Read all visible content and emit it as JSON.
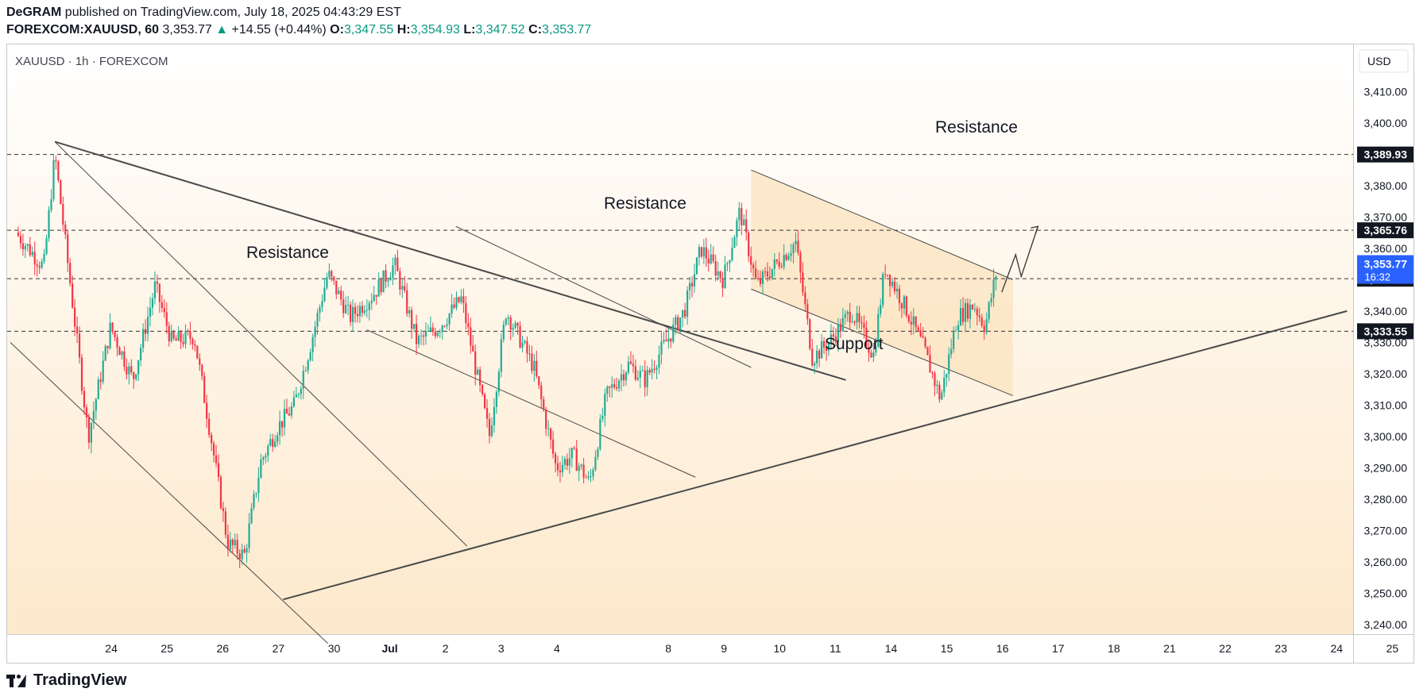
{
  "header": {
    "author": "DeGRAM",
    "published_text": "published on TradingView.com, July 18, 2025 04:43:29 EST",
    "symbol_line": "FOREXCOM:XAUUSD, 60",
    "last": "3,353.77",
    "change_arrow": "▲",
    "change": "+14.55 (+0.44%)",
    "o_label": "O:",
    "o": "3,347.55",
    "h_label": "H:",
    "h": "3,354.93",
    "l_label": "L:",
    "l": "3,347.52",
    "c_label": "C:",
    "c": "3,353.77"
  },
  "legend": "XAUUSD · 1h · FOREXCOM",
  "currency": "USD",
  "footer": {
    "brand": "TradingView"
  },
  "colors": {
    "up": "#22ab94",
    "down": "#f23645",
    "line": "#4a4a4a",
    "bg_top": "#ffffff",
    "bg_bottom": "#fde9cc",
    "channel_fill": "#fbe3bf",
    "label_bg": "#131722",
    "current_bg": "#2962ff"
  },
  "chart_data": {
    "type": "candlestick",
    "ylim": [
      3235,
      3415
    ],
    "y_ticks": [
      3240,
      3250,
      3260,
      3270,
      3280,
      3290,
      3300,
      3310,
      3320,
      3330,
      3340,
      3350,
      3360,
      3370,
      3380,
      3390,
      3400,
      3410
    ],
    "y_tick_labels": [
      "3,240.00",
      "3,250.00",
      "3,260.00",
      "3,270.00",
      "3,280.00",
      "3,290.00",
      "3,300.00",
      "3,310.00",
      "3,320.00",
      "3,330.00",
      "3,340.00",
      "3,350.00",
      "3,360.00",
      "3,370.00",
      "3,380.00",
      "3,390.00",
      "3,400.00",
      "3,410.00"
    ],
    "x_tick_labels": [
      "24",
      "25",
      "26",
      "27",
      "30",
      "Jul",
      "2",
      "3",
      "4",
      "8",
      "9",
      "10",
      "11",
      "14",
      "15",
      "16",
      "17",
      "18",
      "21",
      "22",
      "23",
      "24",
      "25"
    ],
    "x_tick_index": [
      1,
      2,
      3,
      4,
      5,
      6,
      7,
      8,
      9,
      11,
      12,
      13,
      14,
      15,
      16,
      17,
      18,
      19,
      20,
      21,
      22,
      23,
      24
    ],
    "price_levels": [
      {
        "value": 3389.93,
        "label": "3,389.93"
      },
      {
        "value": 3365.76,
        "label": "3,365.76"
      },
      {
        "value": 3350.31,
        "label": "3,350.31"
      },
      {
        "value": 3333.55,
        "label": "3,333.55"
      }
    ],
    "current_price": {
      "value": 3353.77,
      "label": "3,353.77",
      "countdown": "16:32"
    },
    "annotations": [
      "Resistance",
      "Resistance",
      "Resistance",
      "Support"
    ],
    "anchors": [
      {
        "day": 0,
        "price": 3365
      },
      {
        "day": 0.5,
        "price": 3354
      },
      {
        "day": 0.7,
        "price": 3390
      },
      {
        "day": 1.3,
        "price": 3300
      },
      {
        "day": 1.7,
        "price": 3335
      },
      {
        "day": 2.1,
        "price": 3318
      },
      {
        "day": 2.5,
        "price": 3348
      },
      {
        "day": 2.8,
        "price": 3330
      },
      {
        "day": 3.2,
        "price": 3332
      },
      {
        "day": 3.5,
        "price": 3300
      },
      {
        "day": 3.8,
        "price": 3266
      },
      {
        "day": 4.1,
        "price": 3262
      },
      {
        "day": 4.4,
        "price": 3292
      },
      {
        "day": 4.7,
        "price": 3303
      },
      {
        "day": 5.0,
        "price": 3310
      },
      {
        "day": 5.3,
        "price": 3330
      },
      {
        "day": 5.6,
        "price": 3352
      },
      {
        "day": 6.0,
        "price": 3338
      },
      {
        "day": 6.4,
        "price": 3345
      },
      {
        "day": 6.8,
        "price": 3355
      },
      {
        "day": 7.2,
        "price": 3330
      },
      {
        "day": 7.6,
        "price": 3335
      },
      {
        "day": 8.0,
        "price": 3344
      },
      {
        "day": 8.5,
        "price": 3300
      },
      {
        "day": 8.8,
        "price": 3340
      },
      {
        "day": 9.3,
        "price": 3322
      },
      {
        "day": 9.7,
        "price": 3290
      },
      {
        "day": 10.0,
        "price": 3294
      },
      {
        "day": 10.3,
        "price": 3285
      },
      {
        "day": 10.6,
        "price": 3313
      },
      {
        "day": 11.0,
        "price": 3323
      },
      {
        "day": 11.3,
        "price": 3318
      },
      {
        "day": 11.6,
        "price": 3328
      },
      {
        "day": 12.0,
        "price": 3340
      },
      {
        "day": 12.3,
        "price": 3360
      },
      {
        "day": 12.7,
        "price": 3350
      },
      {
        "day": 13.0,
        "price": 3372
      },
      {
        "day": 13.3,
        "price": 3348
      },
      {
        "day": 13.7,
        "price": 3356
      },
      {
        "day": 14.0,
        "price": 3362
      },
      {
        "day": 14.3,
        "price": 3325
      },
      {
        "day": 14.6,
        "price": 3330
      },
      {
        "day": 15.0,
        "price": 3340
      },
      {
        "day": 15.4,
        "price": 3326
      },
      {
        "day": 15.6,
        "price": 3354
      },
      {
        "day": 16.0,
        "price": 3340
      },
      {
        "day": 16.3,
        "price": 3328
      },
      {
        "day": 16.6,
        "price": 3312
      },
      {
        "day": 16.9,
        "price": 3338
      },
      {
        "day": 17.2,
        "price": 3342
      },
      {
        "day": 17.4,
        "price": 3335
      },
      {
        "day": 17.6,
        "price": 3352
      }
    ],
    "projection": [
      {
        "day": 17.7,
        "price": 3346
      },
      {
        "day": 17.95,
        "price": 3358
      },
      {
        "day": 18.05,
        "price": 3351
      },
      {
        "day": 18.35,
        "price": 3367
      }
    ],
    "trendlines": [
      {
        "from": {
          "day": 0.7,
          "price": 3394
        },
        "to": {
          "day": 14.9,
          "price": 3318
        }
      },
      {
        "from": {
          "day": 0.7,
          "price": 3394
        },
        "to": {
          "day": 8.1,
          "price": 3265
        }
      },
      {
        "from": {
          "day": 7.9,
          "price": 3367
        },
        "to": {
          "day": 13.2,
          "price": 3322
        }
      },
      {
        "from": {
          "day": 6.3,
          "price": 3334
        },
        "to": {
          "day": 12.2,
          "price": 3287
        }
      },
      {
        "from": {
          "day": 4.8,
          "price": 3248
        },
        "to": {
          "day": 23.9,
          "price": 3340
        }
      },
      {
        "from": {
          "day": -0.1,
          "price": 3330
        },
        "to": {
          "day": 5.6,
          "price": 3234
        }
      },
      {
        "from": {
          "day": 13.2,
          "price": 3385
        },
        "to": {
          "day": 17.9,
          "price": 3350
        }
      },
      {
        "from": {
          "day": 13.2,
          "price": 3347
        },
        "to": {
          "day": 17.9,
          "price": 3313
        }
      }
    ],
    "channel": [
      {
        "day": 13.2,
        "price": 3385
      },
      {
        "day": 17.9,
        "price": 3350
      },
      {
        "day": 17.9,
        "price": 3313
      },
      {
        "day": 13.2,
        "price": 3347
      }
    ]
  }
}
